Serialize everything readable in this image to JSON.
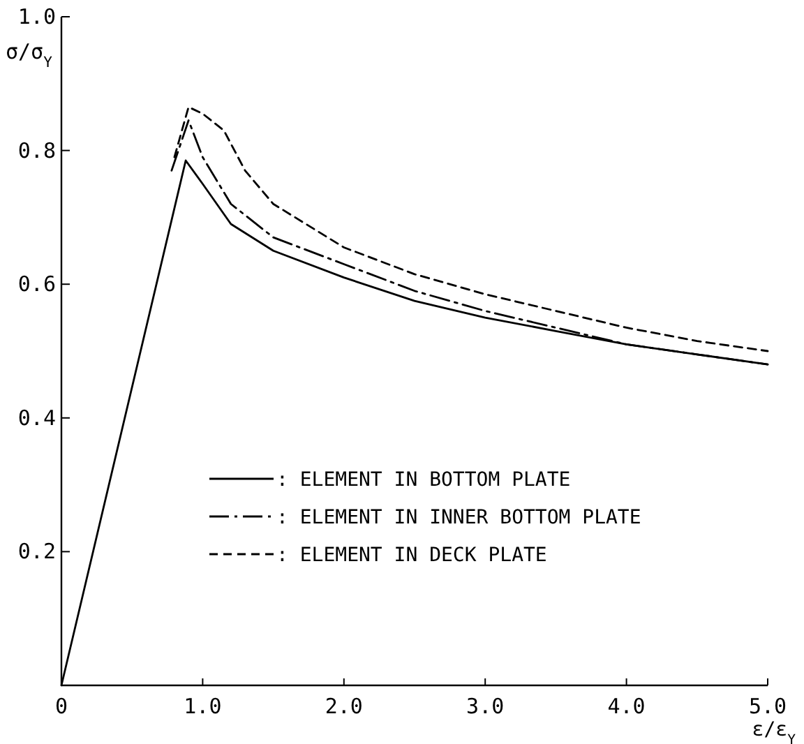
{
  "chart_data": {
    "type": "line",
    "xlabel": "ε/ε$_{Y}$",
    "ylabel": "σ/σ$_{Y}$",
    "xlim": [
      0,
      5
    ],
    "ylim": [
      0,
      1
    ],
    "xticks": [
      0,
      {
        "value": 1,
        "label": "1.0"
      },
      {
        "value": 2,
        "label": "2.0"
      },
      {
        "value": 3,
        "label": "3.0"
      },
      {
        "value": 4,
        "label": "4.0"
      },
      {
        "value": 5,
        "label": "5.0"
      }
    ],
    "yticks": [
      0.2,
      0.4,
      0.6,
      0.8,
      {
        "value": 1,
        "label": "1.0"
      }
    ],
    "grid": false,
    "legend": "bottom right",
    "marker": "none",
    "series": [
      {
        "name": ": ELEMENT IN BOTTOM PLATE",
        "color": "#000000",
        "line_style": "solid",
        "x": [
          0,
          0.88,
          1.0,
          1.2,
          1.5,
          2.0,
          2.5,
          3.0,
          3.5,
          4.0,
          4.5,
          5.0
        ],
        "values": [
          0,
          0.785,
          0.75,
          0.69,
          0.65,
          0.61,
          0.575,
          0.55,
          0.53,
          0.51,
          0.495,
          0.48
        ]
      },
      {
        "name": ": ELEMENT IN INNER BOTTOM PLATE",
        "color": "#000000",
        "line_style": "dashdot",
        "x": [
          0.78,
          0.9,
          1.0,
          1.2,
          1.5,
          2.0,
          2.5,
          3.0,
          3.5,
          4.0,
          4.5,
          5.0
        ],
        "values": [
          0.77,
          0.845,
          0.79,
          0.72,
          0.67,
          0.63,
          0.59,
          0.56,
          0.535,
          0.51,
          0.495,
          0.48
        ]
      },
      {
        "name": ": ELEMENT IN DECK PLATE",
        "color": "#000000",
        "line_style": "dashed",
        "x": [
          0.8,
          0.9,
          1.0,
          1.15,
          1.3,
          1.5,
          2.0,
          2.5,
          3.0,
          3.5,
          4.0,
          4.5,
          5.0
        ],
        "values": [
          0.79,
          0.865,
          0.855,
          0.83,
          0.77,
          0.72,
          0.655,
          0.615,
          0.585,
          0.56,
          0.535,
          0.515,
          0.5
        ]
      }
    ]
  }
}
